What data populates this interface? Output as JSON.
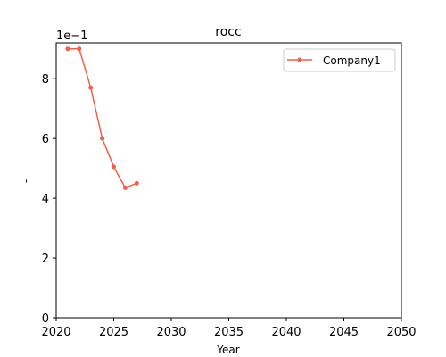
{
  "chart_data": {
    "type": "line",
    "title": "rocc",
    "xlabel": "Year",
    "ylabel": "-",
    "y_offset_label": "1e−1",
    "xlim": [
      2020,
      2050
    ],
    "ylim": [
      0,
      9.2
    ],
    "xticks": [
      2020,
      2025,
      2030,
      2035,
      2040,
      2045,
      2050
    ],
    "yticks": [
      0,
      2,
      4,
      6,
      8
    ],
    "grid": false,
    "legend_position": "top-right",
    "x": [
      2021,
      2022,
      2023,
      2024,
      2025,
      2026,
      2027
    ],
    "series": [
      {
        "name": "Company1",
        "color": "#f0614a",
        "values": [
          9.0,
          9.0,
          7.7,
          6.0,
          5.05,
          4.35,
          4.5
        ]
      }
    ]
  }
}
